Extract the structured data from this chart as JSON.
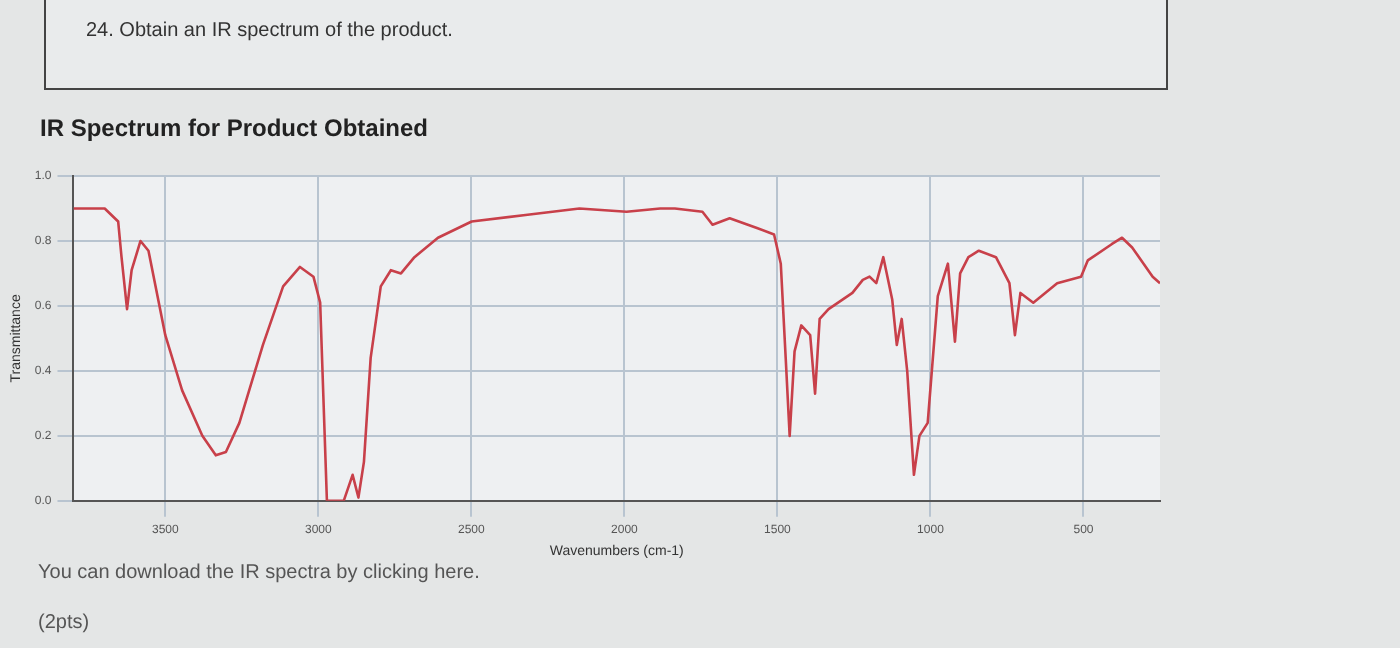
{
  "chart_data": {
    "type": "line",
    "title": "IR Spectrum for Product Obtained",
    "xlabel": "Wavenumbers (cm-1)",
    "ylabel": "Transmittance",
    "annotations": [
      "24. Obtain an IR spectrum of the product.",
      "You can download the IR spectra by clicking here.",
      "(2pts)"
    ],
    "x": [
      3800,
      3698,
      3654,
      3643,
      3625,
      3610,
      3581,
      3555,
      3500,
      3445,
      3379,
      3335,
      3302,
      3258,
      3181,
      3115,
      3060,
      3016,
      2994,
      2972,
      2917,
      2888,
      2869,
      2851,
      2829,
      2796,
      2763,
      2730,
      2686,
      2609,
      2499,
      2323,
      2147,
      1993,
      1883,
      1835,
      1745,
      1712,
      1656,
      1567,
      1511,
      1489,
      1473,
      1460,
      1444,
      1422,
      1393,
      1377,
      1362,
      1333,
      1255,
      1221,
      1199,
      1177,
      1154,
      1125,
      1110,
      1094,
      1076,
      1054,
      1036,
      1009,
      976,
      943,
      920,
      903,
      876,
      842,
      786,
      742,
      724,
      706,
      664,
      586,
      508,
      486,
      408,
      374,
      341,
      274,
      250
    ],
    "series": [
      {
        "color": "#c8404a",
        "values": [
          0.9,
          0.9,
          0.86,
          0.75,
          0.59,
          0.71,
          0.8,
          0.77,
          0.51,
          0.34,
          0.2,
          0.14,
          0.15,
          0.24,
          0.48,
          0.66,
          0.72,
          0.69,
          0.61,
          0.0,
          0.0,
          0.08,
          0.01,
          0.12,
          0.44,
          0.66,
          0.71,
          0.7,
          0.75,
          0.81,
          0.86,
          0.88,
          0.9,
          0.89,
          0.9,
          0.9,
          0.89,
          0.85,
          0.87,
          0.84,
          0.82,
          0.73,
          0.44,
          0.2,
          0.46,
          0.54,
          0.51,
          0.33,
          0.56,
          0.59,
          0.64,
          0.68,
          0.69,
          0.67,
          0.75,
          0.62,
          0.48,
          0.56,
          0.4,
          0.08,
          0.2,
          0.24,
          0.63,
          0.73,
          0.49,
          0.7,
          0.75,
          0.77,
          0.75,
          0.67,
          0.51,
          0.64,
          0.61,
          0.67,
          0.69,
          0.74,
          0.79,
          0.81,
          0.78,
          0.69,
          0.67
        ]
      }
    ],
    "xlim": [
      3800,
      250
    ],
    "xticks": [
      3500,
      3000,
      2500,
      2000,
      1500,
      1000,
      500
    ],
    "ylim": [
      0,
      1
    ],
    "yticks": [
      {
        "value": 0,
        "label": "0.0"
      },
      {
        "value": 0.2,
        "label": "0.2"
      },
      {
        "value": 0.4,
        "label": "0.4"
      },
      {
        "value": 0.6,
        "label": "0.6"
      },
      {
        "value": 0.8,
        "label": "0.8"
      },
      {
        "value": 1,
        "label": "1.0"
      }
    ],
    "grid": true,
    "legend": false,
    "marker": "none",
    "line_style": "solid"
  }
}
